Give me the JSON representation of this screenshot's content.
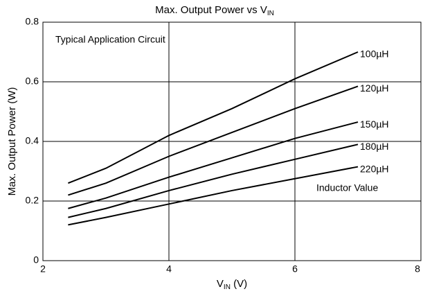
{
  "chart_data": {
    "type": "line",
    "title": {
      "text": "Max. Output Power vs V",
      "subscript": "IN"
    },
    "xlabel": {
      "text": "V",
      "subscript": "IN",
      "suffix": " (V)"
    },
    "ylabel": "Max. Output Power (W)",
    "annotations": [
      "Typical Application Circuit",
      "Inductor Value"
    ],
    "x": [
      2.4,
      3,
      4,
      5,
      6,
      7
    ],
    "series": [
      {
        "name": "100µH",
        "color": "#000000",
        "values": [
          0.26,
          0.31,
          0.42,
          0.51,
          0.61,
          0.7
        ]
      },
      {
        "name": "120µH",
        "color": "#000000",
        "values": [
          0.22,
          0.26,
          0.35,
          0.43,
          0.51,
          0.585
        ]
      },
      {
        "name": "150µH",
        "color": "#000000",
        "values": [
          0.175,
          0.21,
          0.28,
          0.345,
          0.41,
          0.465
        ]
      },
      {
        "name": "180µH",
        "color": "#000000",
        "values": [
          0.145,
          0.175,
          0.235,
          0.29,
          0.34,
          0.39
        ]
      },
      {
        "name": "220µH",
        "color": "#000000",
        "values": [
          0.12,
          0.145,
          0.19,
          0.235,
          0.275,
          0.315
        ]
      }
    ],
    "xlim": [
      2,
      8
    ],
    "xticks": [
      2,
      4,
      6,
      8
    ],
    "ylim": [
      0,
      0.8
    ],
    "yticks": [
      0,
      0.2,
      0.4,
      0.6,
      0.8
    ],
    "grid": true
  }
}
